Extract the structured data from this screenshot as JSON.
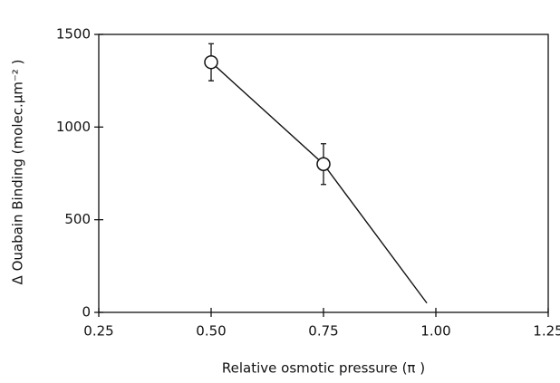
{
  "chart_data": {
    "type": "scatter",
    "x_label": "Relative osmotic pressure (π )",
    "y_label": "Δ Ouabain Binding (molec.μm⁻² )",
    "x": [
      0.5,
      0.75
    ],
    "values": [
      1350,
      800
    ],
    "errors": [
      100,
      110
    ],
    "color": "#111111",
    "fit": {
      "x": [
        0.5,
        0.75,
        0.98
      ],
      "values": [
        1350,
        800,
        50
      ]
    },
    "xlim": [
      0.25,
      1.25
    ],
    "xticks": [
      0.25,
      {
        "value": 0.5,
        "label": "0.50"
      },
      0.75,
      {
        "value": 1.0,
        "label": "1.00"
      },
      1.25
    ],
    "ylim": [
      0,
      1500
    ],
    "yticks": [
      0,
      500,
      1000,
      1500
    ]
  }
}
